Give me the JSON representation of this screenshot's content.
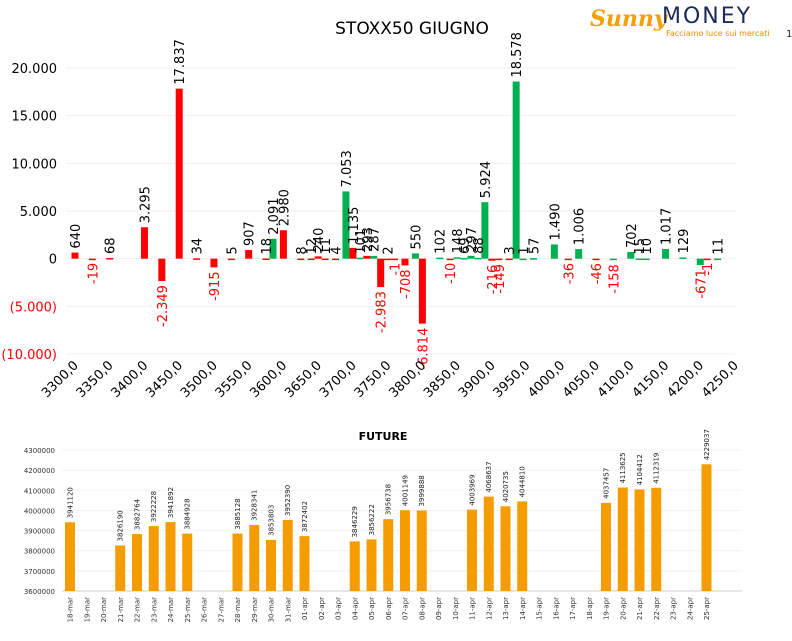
{
  "header": {
    "page_number": "1",
    "logo": {
      "word1": "Sunny",
      "word2": "MONEY",
      "tagline": "Facciamo luce sui mercati"
    }
  },
  "colors": {
    "positive": "#00b050",
    "negative": "#ff0000",
    "future": "#f59c00",
    "negative_label": "#ff0000",
    "positive_label": "#000000"
  },
  "chart_data": [
    {
      "type": "bar",
      "title": "STOXX50 GIUGNO",
      "ylim": [
        -10000,
        20000
      ],
      "y_ticks": [
        {
          "value": 20000,
          "label": "20.000"
        },
        {
          "value": 15000,
          "label": "15.000"
        },
        {
          "value": 10000,
          "label": "10.000"
        },
        {
          "value": 5000,
          "label": "5.000"
        },
        {
          "value": 0,
          "label": "0"
        },
        {
          "value": -5000,
          "label": "(5.000)"
        },
        {
          "value": -10000,
          "label": "(10.000)"
        }
      ],
      "x_tick_labels": [
        "3300,0",
        "3350,0",
        "3400,0",
        "3450,0",
        "3500,0",
        "3550,0",
        "3600,0",
        "3650,0",
        "3700,0",
        "3750,0",
        "3800,0",
        "3850,0",
        "3900,0",
        "3950,0",
        "4000,0",
        "4050,0",
        "4100,0",
        "4150,0",
        "4200,0",
        "4250,0"
      ],
      "bars": [
        {
          "x": 3300,
          "value": 640,
          "label": "640",
          "color": "red"
        },
        {
          "x": 3325,
          "value": -19,
          "label": "-19",
          "color": "red"
        },
        {
          "x": 3350,
          "value": 68,
          "label": "68",
          "color": "red"
        },
        {
          "x": 3400,
          "value": 3295,
          "label": "3.295",
          "color": "red"
        },
        {
          "x": 3425,
          "value": -2349,
          "label": "-2.349",
          "color": "red"
        },
        {
          "x": 3450,
          "value": 17837,
          "label": "17.837",
          "color": "red"
        },
        {
          "x": 3475,
          "value": 34,
          "label": "34",
          "color": "red"
        },
        {
          "x": 3500,
          "value": -915,
          "label": "-915",
          "color": "red"
        },
        {
          "x": 3525,
          "value": 5,
          "label": "5",
          "color": "red"
        },
        {
          "x": 3550,
          "value": 907,
          "label": "907",
          "color": "red"
        },
        {
          "x": 3575,
          "value": 18,
          "label": "18",
          "color": "red"
        },
        {
          "x": 3585,
          "value": 2091,
          "label": "2.091",
          "color": "green"
        },
        {
          "x": 3600,
          "value": 2980,
          "label": "2.980",
          "color": "red"
        },
        {
          "x": 3625,
          "value": 8,
          "label": "8",
          "color": "red"
        },
        {
          "x": 3640,
          "value": 12,
          "label": "12",
          "color": "red"
        },
        {
          "x": 3650,
          "value": 240,
          "label": "240",
          "color": "red"
        },
        {
          "x": 3660,
          "value": 11,
          "label": "11",
          "color": "red"
        },
        {
          "x": 3675,
          "value": 4,
          "label": "4",
          "color": "red"
        },
        {
          "x": 3690,
          "value": 7053,
          "label": "7.053",
          "color": "green"
        },
        {
          "x": 3700,
          "value": 1135,
          "label": "1.135",
          "color": "red"
        },
        {
          "x": 3710,
          "value": 101,
          "label": "101",
          "color": "green"
        },
        {
          "x": 3720,
          "value": 293,
          "label": "293",
          "color": "red"
        },
        {
          "x": 3730,
          "value": 287,
          "label": "287",
          "color": "green"
        },
        {
          "x": 3740,
          "value": -2983,
          "label": "-2.983",
          "color": "red"
        },
        {
          "x": 3750,
          "value": 2,
          "label": "2",
          "color": "red"
        },
        {
          "x": 3760,
          "value": -1,
          "label": "-1",
          "color": "red"
        },
        {
          "x": 3775,
          "value": -708,
          "label": "-708",
          "color": "red"
        },
        {
          "x": 3790,
          "value": 550,
          "label": "550",
          "color": "green"
        },
        {
          "x": 3800,
          "value": -6814,
          "label": "-6.814",
          "color": "red"
        },
        {
          "x": 3825,
          "value": 102,
          "label": "102",
          "color": "green"
        },
        {
          "x": 3840,
          "value": -10,
          "label": "-10",
          "color": "red"
        },
        {
          "x": 3850,
          "value": 148,
          "label": "148",
          "color": "green"
        },
        {
          "x": 3860,
          "value": 69,
          "label": "69",
          "color": "green"
        },
        {
          "x": 3870,
          "value": 297,
          "label": "297",
          "color": "green"
        },
        {
          "x": 3880,
          "value": 88,
          "label": "88",
          "color": "green"
        },
        {
          "x": 3890,
          "value": 5924,
          "label": "5.924",
          "color": "green"
        },
        {
          "x": 3900,
          "value": -216,
          "label": "-216",
          "color": "red"
        },
        {
          "x": 3910,
          "value": -149,
          "label": "-149",
          "color": "red"
        },
        {
          "x": 3925,
          "value": 3,
          "label": "3",
          "color": "red"
        },
        {
          "x": 3935,
          "value": 18578,
          "label": "18.578",
          "color": "green"
        },
        {
          "x": 3945,
          "value": 1,
          "label": "1",
          "color": "green"
        },
        {
          "x": 3960,
          "value": 57,
          "label": "57",
          "color": "green"
        },
        {
          "x": 3990,
          "value": 1490,
          "label": "1.490",
          "color": "green"
        },
        {
          "x": 4010,
          "value": -36,
          "label": "-36",
          "color": "red"
        },
        {
          "x": 4025,
          "value": 1006,
          "label": "1.006",
          "color": "green"
        },
        {
          "x": 4050,
          "value": -46,
          "label": "-46",
          "color": "red"
        },
        {
          "x": 4075,
          "value": -158,
          "label": "-158",
          "color": "green"
        },
        {
          "x": 4100,
          "value": 702,
          "label": "702",
          "color": "green"
        },
        {
          "x": 4112,
          "value": 15,
          "label": "15",
          "color": "green"
        },
        {
          "x": 4122,
          "value": 10,
          "label": "10",
          "color": "green"
        },
        {
          "x": 4150,
          "value": 1017,
          "label": "1.017",
          "color": "green"
        },
        {
          "x": 4175,
          "value": 129,
          "label": "129",
          "color": "green"
        },
        {
          "x": 4200,
          "value": -671,
          "label": "-671",
          "color": "green"
        },
        {
          "x": 4210,
          "value": -1,
          "label": "-1",
          "color": "red"
        },
        {
          "x": 4225,
          "value": 11,
          "label": "11",
          "color": "green"
        }
      ]
    },
    {
      "type": "bar",
      "title": "FUTURE",
      "ylim": [
        3600000,
        4300000
      ],
      "y_ticks": [
        {
          "value": 4300000,
          "label": "4300000"
        },
        {
          "value": 4200000,
          "label": "4200000"
        },
        {
          "value": 4100000,
          "label": "4100000"
        },
        {
          "value": 4000000,
          "label": "4000000"
        },
        {
          "value": 3900000,
          "label": "3900000"
        },
        {
          "value": 3800000,
          "label": "3800000"
        },
        {
          "value": 3700000,
          "label": "3700000"
        },
        {
          "value": 3600000,
          "label": "3600000"
        }
      ],
      "categories": [
        "18-mar",
        "19-mar",
        "20-mar",
        "21-mar",
        "22-mar",
        "23-mar",
        "24-mar",
        "25-mar",
        "26-mar",
        "27-mar",
        "28-mar",
        "29-mar",
        "30-mar",
        "31-mar",
        "01-apr",
        "02-apr",
        "03-apr",
        "04-apr",
        "05-apr",
        "06-apr",
        "07-apr",
        "08-apr",
        "09-apr",
        "10-apr",
        "11-apr",
        "12-apr",
        "13-apr",
        "14-apr",
        "15-apr",
        "16-apr",
        "17-apr",
        "18-apr",
        "19-apr",
        "20-apr",
        "21-apr",
        "22-apr",
        "23-apr",
        "24-apr",
        "25-apr"
      ],
      "values": [
        3941120,
        null,
        null,
        3826190,
        3882764,
        3922228,
        3941892,
        3884928,
        null,
        null,
        3885128,
        3928341,
        3853803,
        3952390,
        3872402,
        null,
        null,
        3846229,
        3856222,
        3956738,
        4001149,
        3999888,
        null,
        null,
        4003969,
        4068637,
        4020735,
        4044810,
        null,
        null,
        null,
        null,
        4037457,
        4113625,
        4104412,
        4112319,
        null,
        null,
        4229037
      ],
      "value_labels": [
        "3941120",
        "",
        "",
        "3826190",
        "3882764",
        "3922228",
        "3941892",
        "3884928",
        "",
        "",
        "3885128",
        "3928341",
        "3853803",
        "3952390",
        "3872402",
        "",
        "",
        "3846229",
        "3856222",
        "3956738",
        "4001149",
        "3999888",
        "",
        "",
        "4003969",
        "4068637",
        "4020735",
        "4044810",
        "",
        "",
        "",
        "",
        "4037457",
        "4113625",
        "4104412",
        "4112319",
        "",
        "",
        "4229037"
      ]
    }
  ]
}
